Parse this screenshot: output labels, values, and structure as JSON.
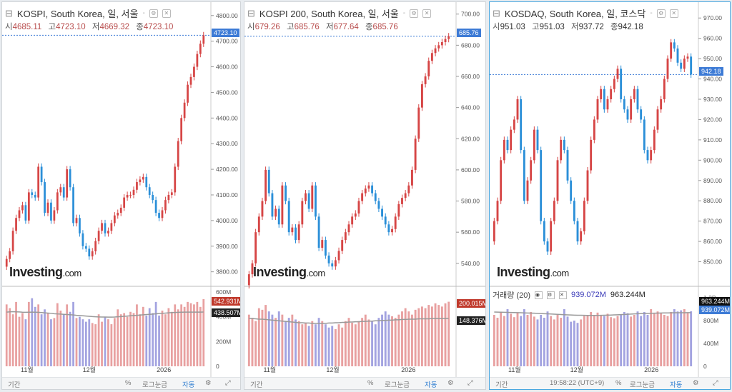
{
  "colors": {
    "up": "#d64545",
    "down": "#2b8fd8",
    "volUp": "#e8a0a0",
    "volDown": "#a3a3e0",
    "ma": "#999999",
    "active": "#4aa8e0"
  },
  "panels": [
    {
      "title": "KOSPI, South Korea, 일, 서울",
      "ohlc": {
        "o_label": "시",
        "o": "4685.11",
        "h_label": "고",
        "h": "4723.10",
        "l_label": "저",
        "l": "4669.32",
        "c_label": "종",
        "c": "4723.10"
      },
      "last_tag": "4723.10",
      "vol_header": "",
      "vol_ma_value": "",
      "vol_value": "",
      "vol_tags": [
        "542.931M",
        "438.507M"
      ],
      "logo": "Investing",
      "logo_suffix": ".com",
      "bottom": {
        "period": "기간",
        "time": "",
        "pct": "%",
        "log": "로그눈금",
        "auto": "자동"
      }
    },
    {
      "title": "KOSPI 200, South Korea, 일, 서울",
      "ohlc": {
        "o_label": "시",
        "o": "679.26",
        "h_label": "고",
        "h": "685.76",
        "l_label": "저",
        "l": "677.64",
        "c_label": "종",
        "c": "685.76"
      },
      "last_tag": "685.76",
      "vol_header": "",
      "vol_ma_value": "",
      "vol_value": "",
      "vol_tags": [
        "200.015M",
        "148.376M"
      ],
      "logo": "Investing",
      "logo_suffix": ".com",
      "bottom": {
        "period": "기간",
        "time": "",
        "pct": "%",
        "log": "로그눈금",
        "auto": "자동"
      }
    },
    {
      "title": "KOSDAQ, South Korea, 일, 코스닥",
      "ohlc": {
        "o_label": "시",
        "o": "951.03",
        "h_label": "고",
        "h": "951.03",
        "l_label": "저",
        "l": "937.72",
        "c_label": "종",
        "c": "942.18"
      },
      "last_tag": "942.18",
      "vol_header": "거래량 (20)",
      "vol_ma_value": "939.072M",
      "vol_value": "963.244M",
      "vol_tags": [
        "963.244M",
        "939.072M"
      ],
      "logo": "Investing",
      "logo_suffix": ".com",
      "bottom": {
        "period": "기간",
        "time": "19:58:22 (UTC+9)",
        "pct": "%",
        "log": "로그눈금",
        "auto": "자동"
      }
    }
  ],
  "chart_data": [
    {
      "type": "candlestick",
      "title": "KOSPI, South Korea, 일, 서울",
      "x_ticks": [
        "11월",
        "12월",
        "2026"
      ],
      "ylim": [
        3760,
        4830
      ],
      "y_ticks": [
        3800,
        3900,
        4000,
        4100,
        4200,
        4300,
        4400,
        4500,
        4600,
        4700,
        4800
      ],
      "closes": [
        3850,
        3880,
        3960,
        4010,
        4040,
        4060,
        4000,
        4110,
        4100,
        4090,
        4210,
        4150,
        4030,
        4070,
        4000,
        4040,
        4110,
        4130,
        4090,
        4200,
        4130,
        3990,
        4010,
        3950,
        3900,
        3890,
        3860,
        3880,
        3920,
        3960,
        3990,
        3950,
        3960,
        3990,
        4020,
        4030,
        4050,
        4090,
        4100,
        4100,
        4120,
        4150,
        4160,
        4170,
        4130,
        4100,
        4080,
        4030,
        4010,
        4040,
        4080,
        4100,
        4110,
        4210,
        4310,
        4400,
        4460,
        4530,
        4560,
        4600,
        4650,
        4690,
        4723.1
      ],
      "vol_ylim": [
        0,
        600
      ],
      "vol_y_ticks": [
        0,
        200,
        400,
        600
      ],
      "vol_unit": "M",
      "volumes": [
        500,
        470,
        420,
        520,
        400,
        430,
        380,
        520,
        550,
        480,
        500,
        420,
        460,
        430,
        380,
        390,
        510,
        450,
        420,
        500,
        440,
        520,
        390,
        400,
        380,
        360,
        380,
        350,
        340,
        420,
        360,
        400,
        380,
        340,
        390,
        460,
        420,
        430,
        400,
        440,
        430,
        500,
        420,
        480,
        410,
        470,
        430,
        520,
        410,
        450,
        420,
        470,
        440,
        500,
        460,
        500,
        480,
        520,
        510,
        500,
        520,
        480,
        543
      ],
      "vol_ma": [
        438,
        440,
        441,
        440,
        439,
        437,
        436,
        437,
        438,
        437,
        436,
        434,
        432,
        430,
        428,
        425,
        423,
        422,
        420,
        418,
        417,
        415,
        412,
        410,
        408,
        406,
        404,
        402,
        400,
        399,
        398,
        398,
        397,
        397,
        398,
        400,
        402,
        404,
        406,
        408,
        410,
        412,
        414,
        416,
        418,
        420,
        422,
        424,
        426,
        428,
        430,
        432,
        434,
        435,
        436,
        437,
        438,
        438,
        438,
        438,
        438,
        438,
        438.5
      ]
    },
    {
      "type": "candlestick",
      "title": "KOSPI 200, South Korea, 일, 서울",
      "x_ticks": [
        "11월",
        "12월",
        "2026"
      ],
      "ylim": [
        528,
        704
      ],
      "y_ticks": [
        540,
        560,
        580,
        600,
        620,
        640,
        660,
        680,
        700
      ],
      "closes": [
        533,
        540,
        560,
        570,
        580,
        600,
        585,
        570,
        575,
        565,
        590,
        580,
        560,
        563,
        555,
        565,
        580,
        585,
        575,
        590,
        570,
        550,
        555,
        545,
        540,
        538,
        542,
        548,
        555,
        560,
        565,
        570,
        572,
        580,
        585,
        588,
        590,
        585,
        580,
        575,
        570,
        565,
        560,
        562,
        570,
        578,
        582,
        585,
        590,
        600,
        620,
        640,
        655,
        660,
        670,
        675,
        678,
        680,
        682,
        684,
        685.76
      ],
      "vol_ylim": [
        0,
        230
      ],
      "vol_y_ticks": [],
      "vol_unit": "M",
      "volumes": [
        160,
        150,
        140,
        180,
        175,
        190,
        170,
        160,
        150,
        170,
        160,
        140,
        150,
        160,
        145,
        140,
        130,
        135,
        125,
        140,
        130,
        150,
        140,
        130,
        120,
        125,
        115,
        130,
        120,
        140,
        150,
        135,
        130,
        140,
        150,
        160,
        145,
        140,
        130,
        150,
        160,
        170,
        160,
        155,
        150,
        160,
        170,
        180,
        170,
        160,
        175,
        180,
        185,
        180,
        190,
        185,
        195,
        190,
        185,
        195,
        200
      ],
      "vol_ma": [
        148,
        148,
        147,
        146,
        146,
        145,
        144,
        143,
        142,
        141,
        140,
        139,
        138,
        137,
        136,
        135,
        135,
        134,
        134,
        133,
        133,
        133,
        133,
        133,
        134,
        134,
        135,
        135,
        136,
        136,
        137,
        137,
        138,
        138,
        139,
        139,
        140,
        140,
        141,
        141,
        142,
        142,
        143,
        143,
        144,
        144,
        145,
        145,
        146,
        146,
        146,
        147,
        147,
        147,
        147,
        148,
        148,
        148,
        148,
        148,
        148.4
      ]
    },
    {
      "type": "candlestick",
      "title": "KOSDAQ, South Korea, 일, 코스닥",
      "x_ticks": [
        "11월",
        "12월",
        "2026"
      ],
      "ylim": [
        840,
        975
      ],
      "y_ticks": [
        850,
        860,
        870,
        880,
        890,
        900,
        910,
        920,
        930,
        940,
        950,
        960,
        970
      ],
      "closes": [
        870,
        880,
        900,
        910,
        905,
        915,
        920,
        930,
        905,
        880,
        890,
        900,
        915,
        905,
        870,
        860,
        855,
        870,
        880,
        900,
        910,
        905,
        890,
        880,
        870,
        860,
        865,
        880,
        895,
        910,
        920,
        930,
        935,
        925,
        930,
        935,
        940,
        945,
        930,
        925,
        920,
        930,
        935,
        925,
        920,
        905,
        900,
        905,
        915,
        925,
        930,
        940,
        950,
        958,
        955,
        948,
        945,
        950,
        951,
        942.18
      ],
      "vol_ylim": [
        0,
        1300
      ],
      "vol_y_ticks": [
        0,
        400,
        800,
        1200
      ],
      "vol_unit": "M",
      "volumes": [
        900,
        850,
        950,
        880,
        1000,
        920,
        860,
        940,
        880,
        1000,
        900,
        950,
        870,
        820,
        900,
        850,
        960,
        880,
        820,
        900,
        850,
        1000,
        870,
        780,
        800,
        760,
        820,
        880,
        900,
        950,
        880,
        940,
        900,
        880,
        920,
        860,
        840,
        880,
        900,
        950,
        930,
        870,
        900,
        960,
        880,
        950,
        900,
        1000,
        920,
        960,
        930,
        900,
        880,
        950,
        1000,
        960,
        980,
        1000,
        940,
        963
      ],
      "vol_ma": [
        950,
        948,
        947,
        945,
        944,
        942,
        940,
        939,
        937,
        935,
        933,
        931,
        929,
        927,
        924,
        921,
        918,
        915,
        912,
        909,
        906,
        903,
        900,
        898,
        896,
        894,
        893,
        892,
        891,
        890,
        890,
        891,
        892,
        893,
        895,
        897,
        900,
        902,
        905,
        908,
        911,
        914,
        917,
        920,
        922,
        924,
        926,
        928,
        930,
        932,
        933,
        934,
        935,
        936,
        937,
        937,
        938,
        938,
        939,
        939.07
      ]
    }
  ]
}
